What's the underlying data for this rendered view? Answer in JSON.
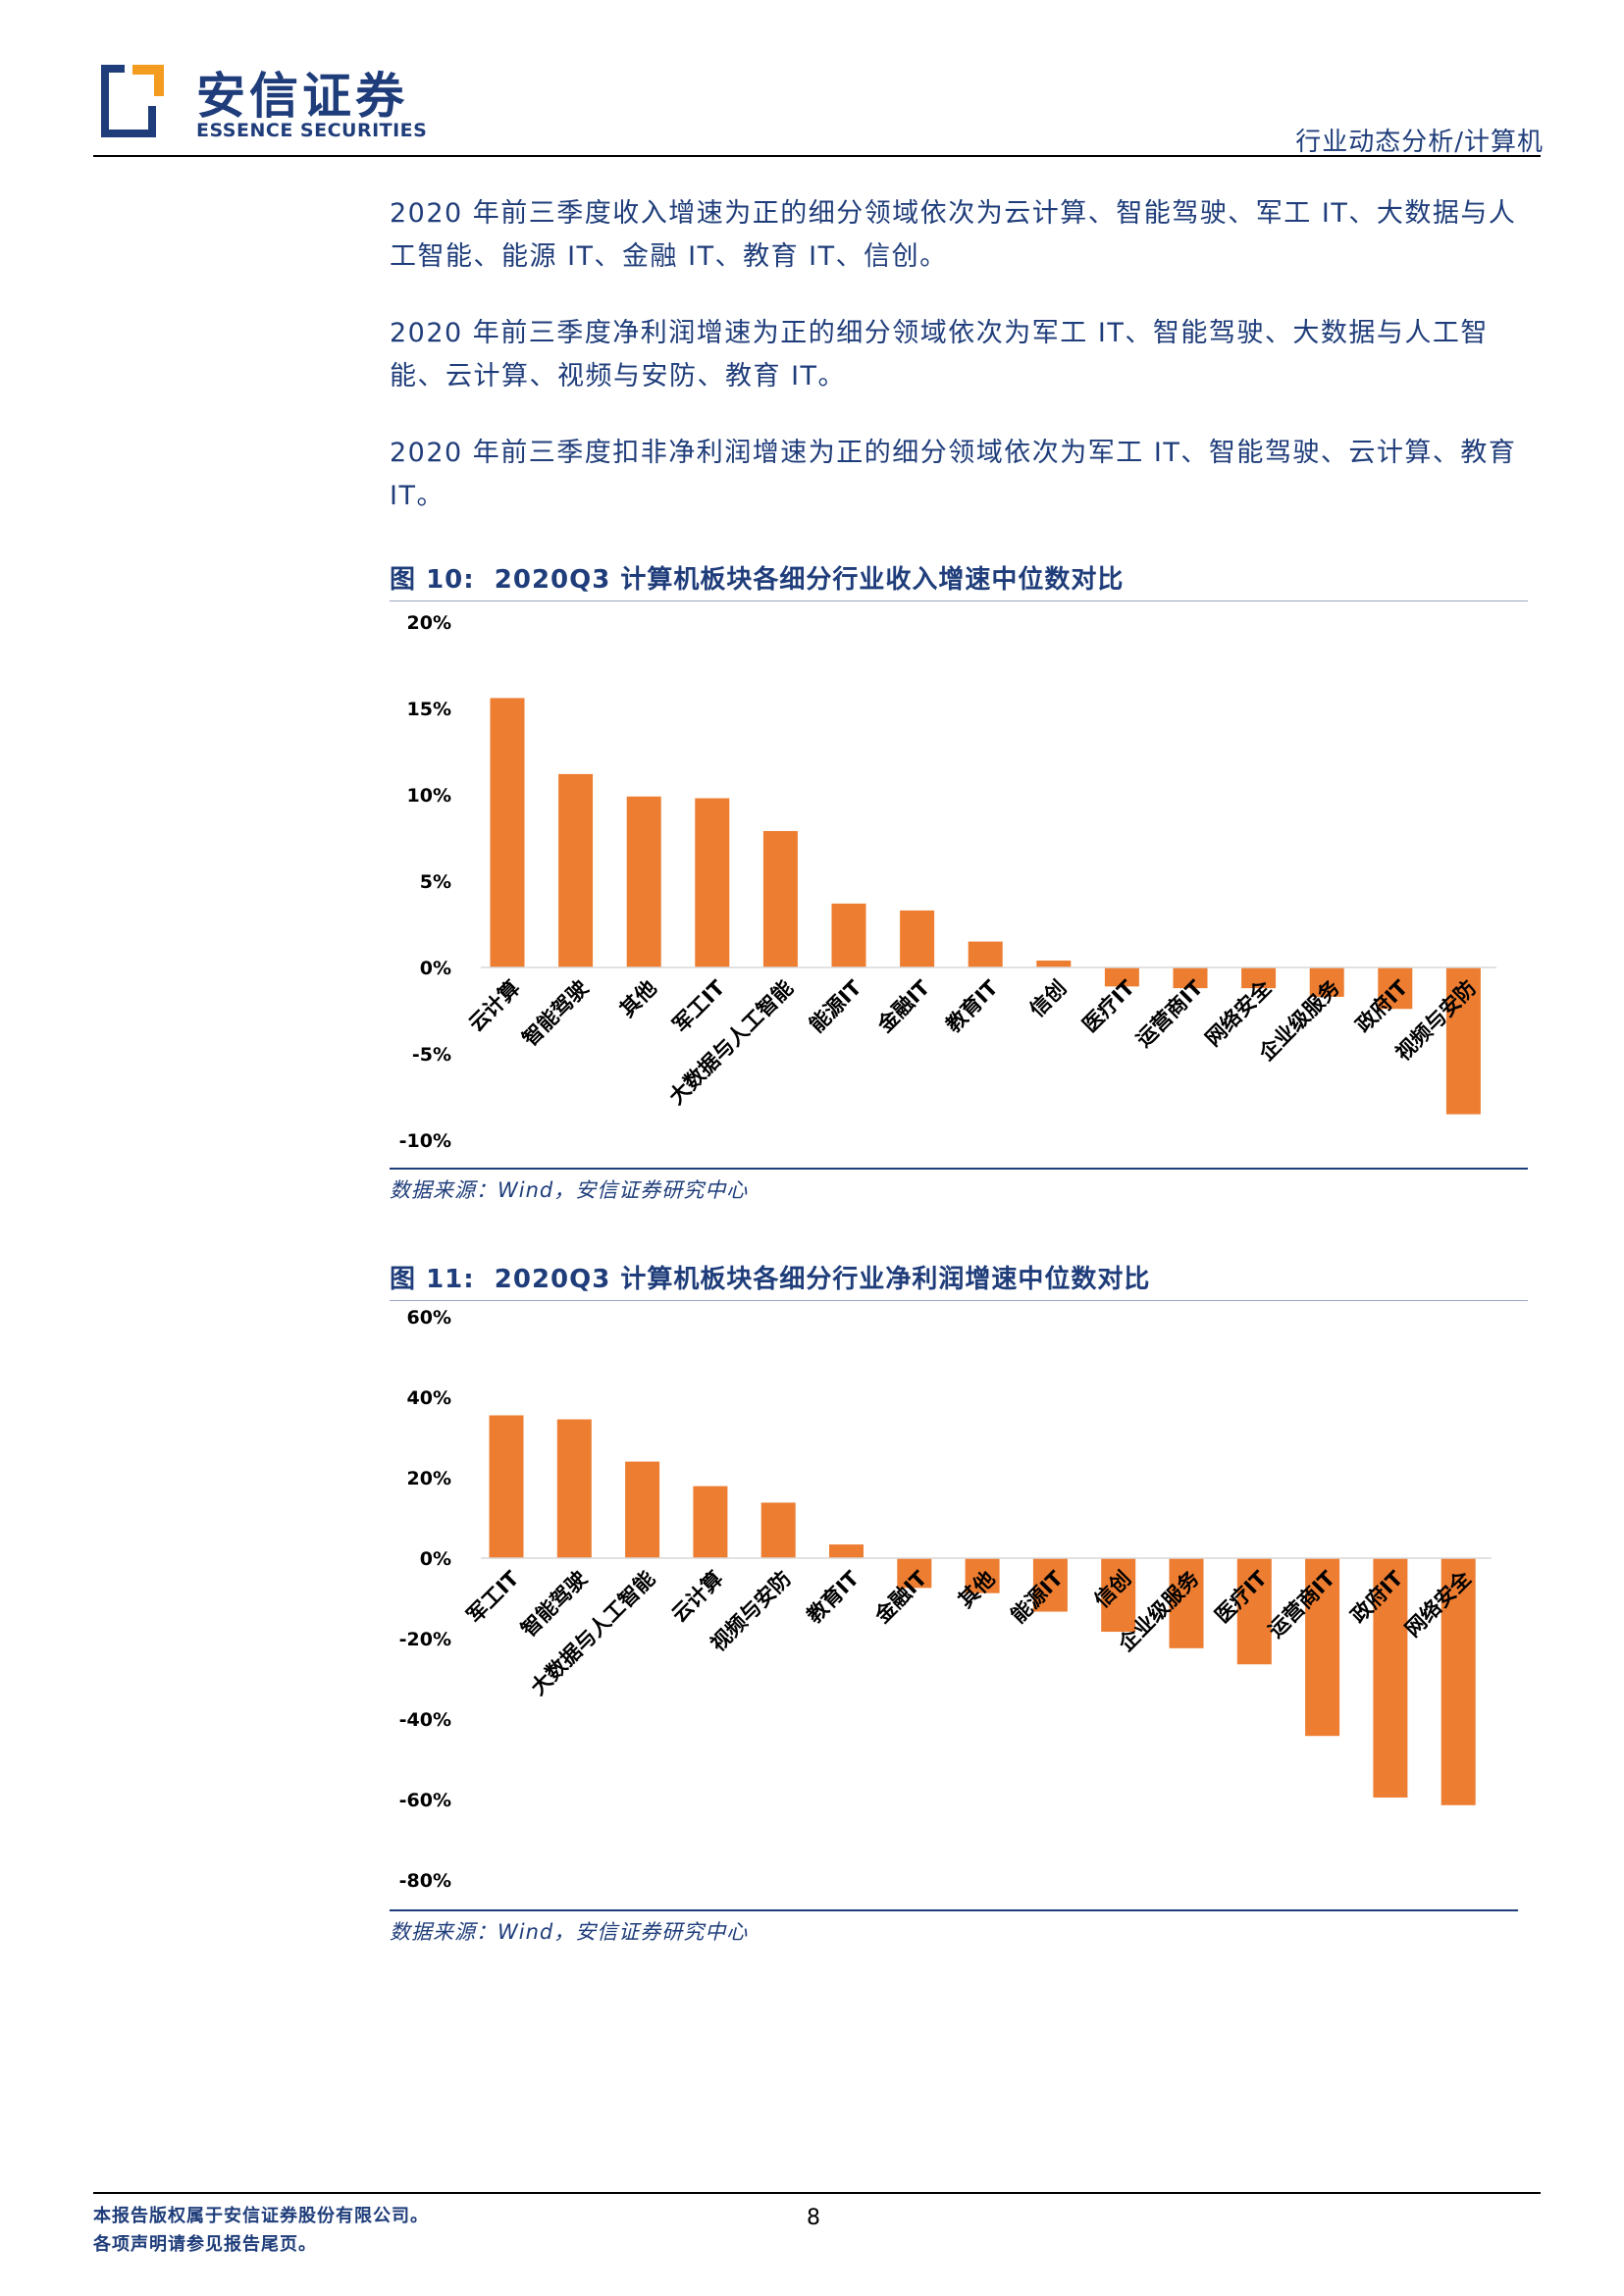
{
  "header": {
    "logo_cn": "安信证券",
    "logo_en": "ESSENCE SECURITIES",
    "section": "行业动态分析/计算机",
    "brand_blue": "#1f3d7a",
    "brand_orange": "#f39c1f"
  },
  "paragraphs": [
    "2020 年前三季度收入增速为正的细分领域依次为云计算、智能驾驶、军工 IT、大数据与人工智能、能源 IT、金融 IT、教育 IT、信创。",
    "2020 年前三季度净利润增速为正的细分领域依次为军工 IT、智能驾驶、大数据与人工智能、云计算、视频与安防、教育 IT。",
    "2020 年前三季度扣非净利润增速为正的细分领域依次为军工 IT、智能驾驶、云计算、教育 IT。"
  ],
  "figures": [
    {
      "label": "图",
      "number": "10",
      "title": "2020Q3 计算机板块各细分行业收入增速中位数对比",
      "source": "数据来源：Wind，安信证券研究中心"
    },
    {
      "label": "图",
      "number": "11",
      "title": "2020Q3 计算机板块各细分行业净利润增速中位数对比",
      "source": "数据来源：Wind，安信证券研究中心"
    }
  ],
  "chart_data": [
    {
      "type": "bar",
      "title": "2020Q3 计算机板块各细分行业收入增速中位数对比",
      "categories": [
        "云计算",
        "智能驾驶",
        "其他",
        "军工IT",
        "大数据与人工智能",
        "能源IT",
        "金融IT",
        "教育IT",
        "信创",
        "医疗IT",
        "运营商IT",
        "网络安全",
        "企业级服务",
        "政府IT",
        "视频与安防"
      ],
      "values": [
        15.6,
        11.2,
        9.9,
        9.8,
        7.9,
        3.7,
        3.3,
        1.5,
        0.4,
        -1.1,
        -1.2,
        -1.2,
        -1.7,
        -2.4,
        -8.5
      ],
      "unit": "%",
      "ylim": [
        -10,
        20
      ],
      "yticks": [
        20,
        15,
        10,
        5,
        0,
        -5,
        -10
      ],
      "ytick_labels": [
        "20%",
        "15%",
        "10%",
        "5%",
        "0%",
        "-5%",
        "-10%"
      ],
      "bar_color": "#ed7d31",
      "grid": false
    },
    {
      "type": "bar",
      "title": "2020Q3 计算机板块各细分行业净利润增速中位数对比",
      "categories": [
        "军工IT",
        "智能驾驶",
        "大数据与人工智能",
        "云计算",
        "视频与安防",
        "教育IT",
        "金融IT",
        "其他",
        "能源IT",
        "信创",
        "企业级服务",
        "医疗IT",
        "运营商IT",
        "政府IT",
        "网络安全"
      ],
      "values": [
        35.5,
        34.5,
        24,
        17.9,
        13.8,
        3.4,
        -7.4,
        -8.7,
        -13.3,
        -18.3,
        -22.4,
        -26.4,
        -44.2,
        -59.5,
        -61.4
      ],
      "unit": "%",
      "ylim": [
        -80,
        60
      ],
      "yticks": [
        60,
        40,
        20,
        0,
        -20,
        -40,
        -60,
        -80
      ],
      "ytick_labels": [
        "60%",
        "40%",
        "20%",
        "0%",
        "-20%",
        "-40%",
        "-60%",
        "-80%"
      ],
      "bar_color": "#ed7d31",
      "grid": false
    }
  ],
  "footer": {
    "line1": "本报告版权属于安信证券股份有限公司。",
    "line2": "各项声明请参见报告尾页。",
    "page_number": "8"
  }
}
